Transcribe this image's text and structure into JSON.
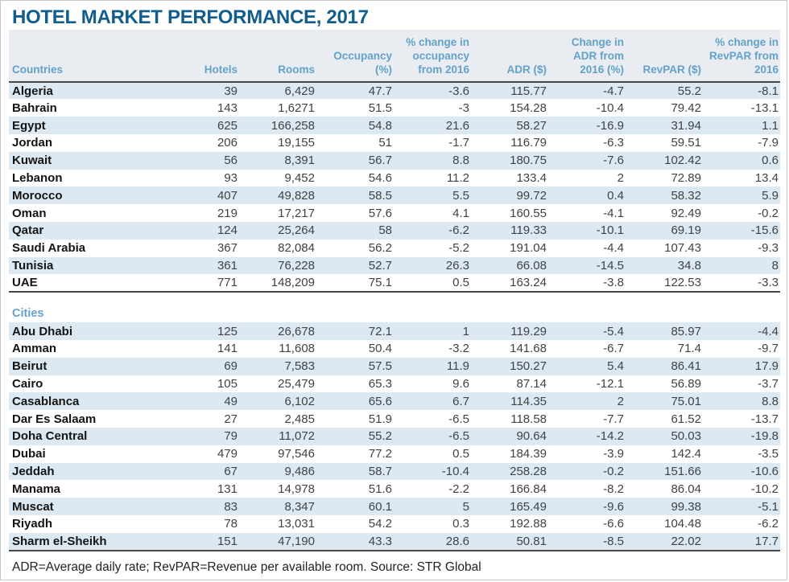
{
  "title": "HOTEL MARKET PERFORMANCE, 2017",
  "footnote": "ADR=Average daily rate; RevPAR=Revenue per available room. Source: STR Global",
  "colors": {
    "title_blue": "#115e8d",
    "header_text_blue": "#63a1c9",
    "row_tint": "#dce9f3",
    "rule_dark": "#474747",
    "number_text": "#3f4246"
  },
  "chart_data": {
    "type": "table",
    "title": "HOTEL MARKET PERFORMANCE, 2017",
    "columns": [
      "Countries",
      "Hotels",
      "Rooms",
      "Occupancy (%)",
      "% change in occupancy from 2016",
      "ADR ($)",
      "Change in ADR from 2016 (%)",
      "RevPAR ($)",
      "% change in RevPAR from 2016"
    ],
    "sections": [
      {
        "label": "Countries",
        "rows": [
          [
            "Algeria",
            "39",
            "6,429",
            "47.7",
            "-3.6",
            "115.77",
            "-4.7",
            "55.2",
            "-8.1"
          ],
          [
            "Bahrain",
            "143",
            "1,6271",
            "51.5",
            "-3",
            "154.28",
            "-10.4",
            "79.42",
            "-13.1"
          ],
          [
            "Egypt",
            "625",
            "166,258",
            "54.8",
            "21.6",
            "58.27",
            "-16.9",
            "31.94",
            "1.1"
          ],
          [
            "Jordan",
            "206",
            "19,155",
            "51",
            "-1.7",
            "116.79",
            "-6.3",
            "59.51",
            "-7.9"
          ],
          [
            "Kuwait",
            "56",
            "8,391",
            "56.7",
            "8.8",
            "180.75",
            "-7.6",
            "102.42",
            "0.6"
          ],
          [
            "Lebanon",
            "93",
            "9,452",
            "54.6",
            "11.2",
            "133.4",
            "2",
            "72.89",
            "13.4"
          ],
          [
            "Morocco",
            "407",
            "49,828",
            "58.5",
            "5.5",
            "99.72",
            "0.4",
            "58.32",
            "5.9"
          ],
          [
            "Oman",
            "219",
            "17,217",
            "57.6",
            "4.1",
            "160.55",
            "-4.1",
            "92.49",
            "-0.2"
          ],
          [
            "Qatar",
            "124",
            "25,264",
            "58",
            "-6.2",
            "119.33",
            "-10.1",
            "69.19",
            "-15.6"
          ],
          [
            "Saudi Arabia",
            "367",
            "82,084",
            "56.2",
            "-5.2",
            "191.04",
            "-4.4",
            "107.43",
            "-9.3"
          ],
          [
            "Tunisia",
            "361",
            "76,228",
            "52.7",
            "26.3",
            "66.08",
            "-14.5",
            "34.8",
            "8"
          ],
          [
            "UAE",
            "771",
            "148,209",
            "75.1",
            "0.5",
            "163.24",
            "-3.8",
            "122.53",
            "-3.3"
          ]
        ]
      },
      {
        "label": "Cities",
        "rows": [
          [
            "Abu Dhabi",
            "125",
            "26,678",
            "72.1",
            "1",
            "119.29",
            "-5.4",
            "85.97",
            "-4.4"
          ],
          [
            "Amman",
            "141",
            "11,608",
            "50.4",
            "-3.2",
            "141.68",
            "-6.7",
            "71.4",
            "-9.7"
          ],
          [
            "Beirut",
            "69",
            "7,583",
            "57.5",
            "11.9",
            "150.27",
            "5.4",
            "86.41",
            "17.9"
          ],
          [
            "Cairo",
            "105",
            "25,479",
            "65.3",
            "9.6",
            "87.14",
            "-12.1",
            "56.89",
            "-3.7"
          ],
          [
            "Casablanca",
            "49",
            "6,102",
            "65.6",
            "6.7",
            "114.35",
            "2",
            "75.01",
            "8.8"
          ],
          [
            "Dar Es Salaam",
            "27",
            "2,485",
            "51.9",
            "-6.5",
            "118.58",
            "-7.7",
            "61.52",
            "-13.7"
          ],
          [
            "Doha Central",
            "79",
            "11,072",
            "55.2",
            "-6.5",
            "90.64",
            "-14.2",
            "50.03",
            "-19.8"
          ],
          [
            "Dubai",
            "479",
            "97,546",
            "77.2",
            "0.5",
            "184.39",
            "-3.9",
            "142.4",
            "-3.5"
          ],
          [
            "Jeddah",
            "67",
            "9,486",
            "58.7",
            "-10.4",
            "258.28",
            "-0.2",
            "151.66",
            "-10.6"
          ],
          [
            "Manama",
            "131",
            "14,978",
            "51.6",
            "-2.2",
            "166.84",
            "-8.2",
            "86.04",
            "-10.2"
          ],
          [
            "Muscat",
            "83",
            "8,347",
            "60.1",
            "5",
            "165.49",
            "-9.6",
            "99.38",
            "-5.1"
          ],
          [
            "Riyadh",
            "78",
            "13,031",
            "54.2",
            "0.3",
            "192.88",
            "-6.6",
            "104.48",
            "-6.2"
          ],
          [
            "Sharm el-Sheikh",
            "151",
            "47,190",
            "43.3",
            "28.6",
            "50.81",
            "-8.5",
            "22.02",
            "17.7"
          ]
        ]
      }
    ],
    "source": "STR Global",
    "footnote": "ADR=Average daily rate; RevPAR=Revenue per available room. Source: STR Global"
  }
}
